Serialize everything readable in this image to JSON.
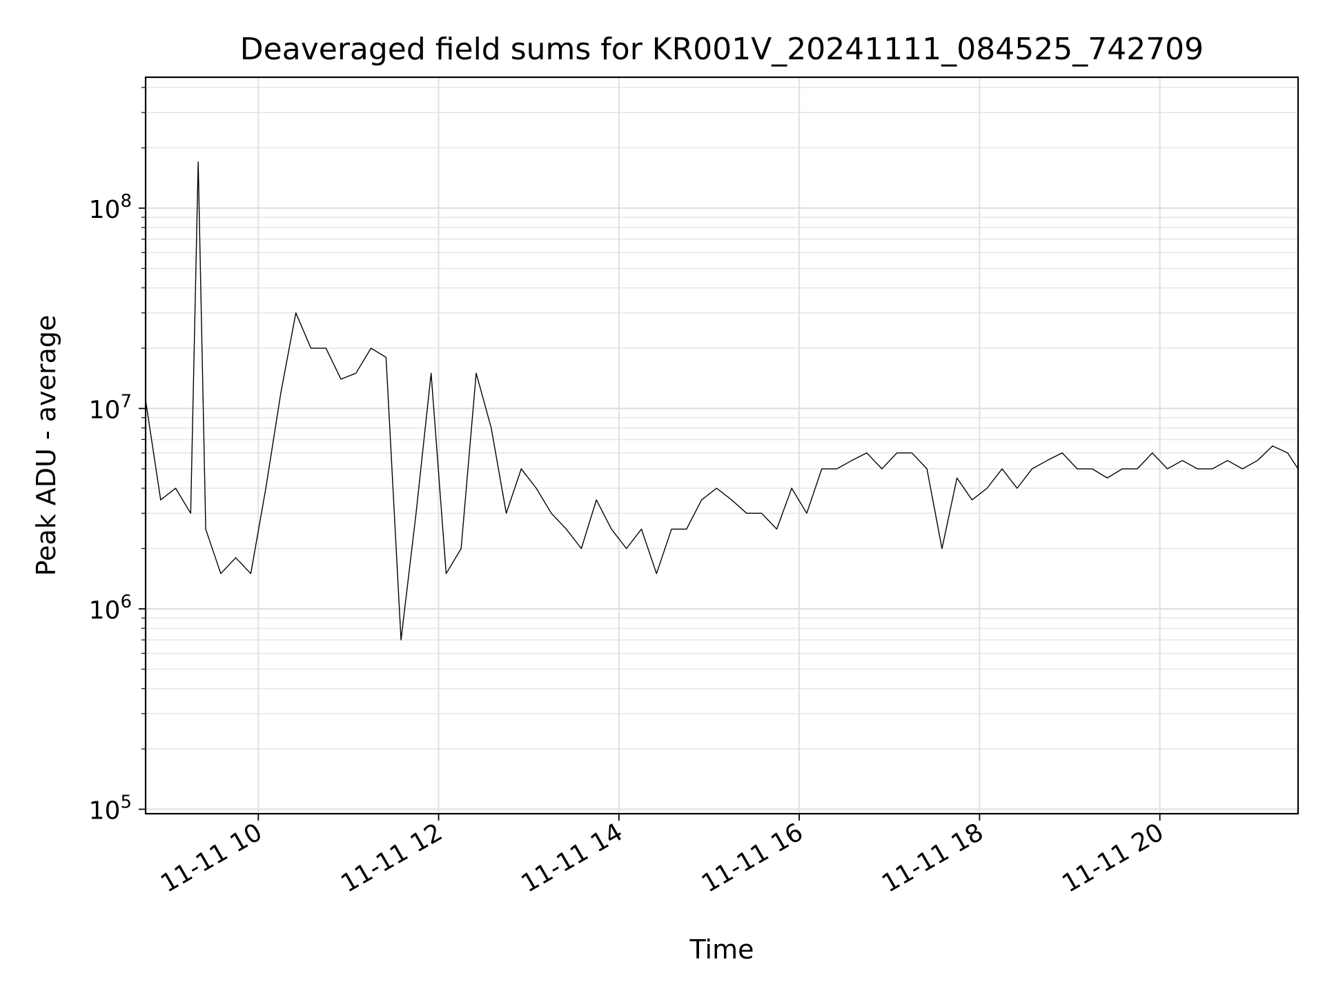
{
  "chart_data": {
    "type": "line",
    "title": "Deaveraged field sums for KR001V_20241111_084525_742709",
    "xlabel": "Time",
    "ylabel": "Peak ADU - average",
    "yscale": "log",
    "ylim": [
      95000,
      450000000
    ],
    "xlim": [
      "2024-11-11 08:45",
      "2024-11-11 21:32"
    ],
    "grid": "on (major and minor)",
    "line_color": "#000000",
    "x_ticks": [
      "2024-11-11 10:00",
      "2024-11-11 12:00",
      "2024-11-11 14:00",
      "2024-11-11 16:00",
      "2024-11-11 18:00",
      "2024-11-11 20:00"
    ],
    "x_tick_labels": [
      "11-11 10",
      "11-11 12",
      "11-11 14",
      "11-11 16",
      "11-11 18",
      "11-11 20"
    ],
    "y_ticks": [
      {
        "value": 100000,
        "base": "10",
        "exp": "5"
      },
      {
        "value": 1000000,
        "base": "10",
        "exp": "6"
      },
      {
        "value": 10000000,
        "base": "10",
        "exp": "7"
      },
      {
        "value": 100000000,
        "base": "10",
        "exp": "8"
      }
    ],
    "series": [
      {
        "x": [
          "2024-11-11 08:45",
          "2024-11-11 08:55",
          "2024-11-11 09:05",
          "2024-11-11 09:15",
          "2024-11-11 09:20",
          "2024-11-11 09:25",
          "2024-11-11 09:35",
          "2024-11-11 09:45",
          "2024-11-11 09:55",
          "2024-11-11 10:05",
          "2024-11-11 10:15",
          "2024-11-11 10:25",
          "2024-11-11 10:35",
          "2024-11-11 10:45",
          "2024-11-11 10:55",
          "2024-11-11 11:05",
          "2024-11-11 11:15",
          "2024-11-11 11:25",
          "2024-11-11 11:35",
          "2024-11-11 11:45",
          "2024-11-11 11:55",
          "2024-11-11 12:05",
          "2024-11-11 12:15",
          "2024-11-11 12:25",
          "2024-11-11 12:35",
          "2024-11-11 12:45",
          "2024-11-11 12:55",
          "2024-11-11 13:05",
          "2024-11-11 13:15",
          "2024-11-11 13:25",
          "2024-11-11 13:35",
          "2024-11-11 13:45",
          "2024-11-11 13:55",
          "2024-11-11 14:05",
          "2024-11-11 14:15",
          "2024-11-11 14:25",
          "2024-11-11 14:35",
          "2024-11-11 14:45",
          "2024-11-11 14:55",
          "2024-11-11 15:05",
          "2024-11-11 15:15",
          "2024-11-11 15:25",
          "2024-11-11 15:35",
          "2024-11-11 15:45",
          "2024-11-11 15:55",
          "2024-11-11 16:05",
          "2024-11-11 16:15",
          "2024-11-11 16:25",
          "2024-11-11 16:35",
          "2024-11-11 16:45",
          "2024-11-11 16:55",
          "2024-11-11 17:05",
          "2024-11-11 17:15",
          "2024-11-11 17:25",
          "2024-11-11 17:35",
          "2024-11-11 17:45",
          "2024-11-11 17:55",
          "2024-11-11 18:05",
          "2024-11-11 18:15",
          "2024-11-11 18:25",
          "2024-11-11 18:35",
          "2024-11-11 18:45",
          "2024-11-11 18:55",
          "2024-11-11 19:05",
          "2024-11-11 19:15",
          "2024-11-11 19:25",
          "2024-11-11 19:35",
          "2024-11-11 19:45",
          "2024-11-11 19:55",
          "2024-11-11 20:05",
          "2024-11-11 20:15",
          "2024-11-11 20:25",
          "2024-11-11 20:35",
          "2024-11-11 20:45",
          "2024-11-11 20:55",
          "2024-11-11 21:05",
          "2024-11-11 21:15",
          "2024-11-11 21:25",
          "2024-11-11 21:32"
        ],
        "y": [
          11000000,
          3500000,
          4000000,
          3000000,
          170000000,
          2500000,
          1500000,
          1800000,
          1500000,
          4000000,
          12000000,
          30000000,
          20000000,
          20000000,
          14000000,
          15000000,
          20000000,
          18000000,
          700000,
          3000000,
          15000000,
          1500000,
          2000000,
          15000000,
          8000000,
          3000000,
          5000000,
          4000000,
          3000000,
          2500000,
          2000000,
          3500000,
          2500000,
          2000000,
          2500000,
          1500000,
          2500000,
          2500000,
          3500000,
          4000000,
          3500000,
          3000000,
          3000000,
          2500000,
          4000000,
          3000000,
          5000000,
          5000000,
          5500000,
          6000000,
          5000000,
          6000000,
          6000000,
          5000000,
          2000000,
          4500000,
          3500000,
          4000000,
          5000000,
          4000000,
          5000000,
          5500000,
          6000000,
          5000000,
          5000000,
          4500000,
          5000000,
          5000000,
          6000000,
          5000000,
          5500000,
          5000000,
          5000000,
          5500000,
          5000000,
          5500000,
          6500000,
          6000000,
          5000000
        ]
      }
    ]
  }
}
